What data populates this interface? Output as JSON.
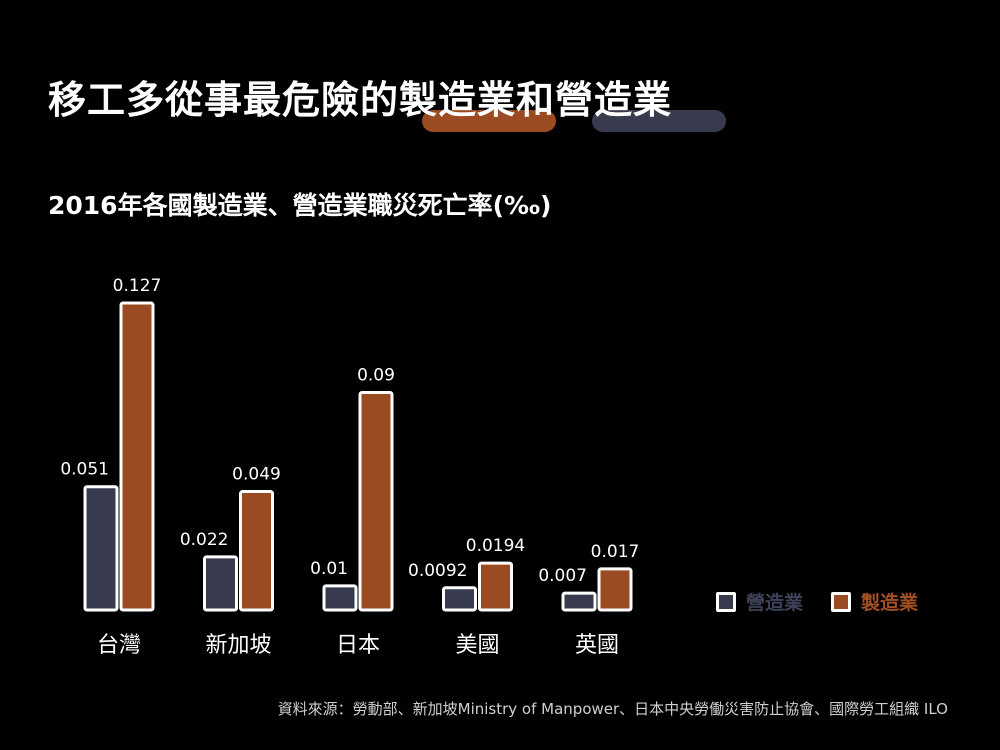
{
  "title": "移工多從事最危險的製造業和營造業",
  "subtitle": "2016年各國製造業、營造業職災死亡率(‰)",
  "source": "資料來源：勞動部、新加坡Ministry of Manpower、日本中央勞働災害防止協會、國際勞工組織 ILO",
  "colors": {
    "construction": "#373b4d",
    "manufacturing": "#9a4b21",
    "construction_label": "#3d4258",
    "manufacturing_label": "#a34f22",
    "outline": "#ffffff"
  },
  "chart_data": {
    "type": "bar",
    "categories": [
      "台灣",
      "新加坡",
      "日本",
      "美國",
      "英國"
    ],
    "series": [
      {
        "name": "營造業",
        "values": [
          0.051,
          0.022,
          0.01,
          0.0092,
          0.007
        ],
        "labels": [
          "0.051",
          "0.022",
          "0.01",
          "0.0092",
          "0.007"
        ]
      },
      {
        "name": "製造業",
        "values": [
          0.127,
          0.049,
          0.09,
          0.0194,
          0.017
        ],
        "labels": [
          "0.127",
          "0.049",
          "0.09",
          "0.0194",
          "0.017"
        ]
      }
    ],
    "ylim": [
      0,
      0.127
    ],
    "grid": false,
    "legend": "right"
  }
}
